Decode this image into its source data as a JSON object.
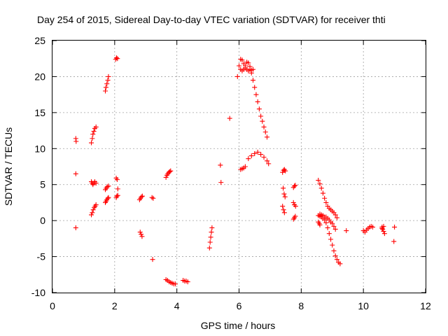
{
  "chart_data": {
    "type": "scatter",
    "title": "Day 254 of 2015, Sidereal Day-to-day VTEC variation (SDTVAR) for receiver thti",
    "xlabel": "GPS time / hours",
    "ylabel": "SDTVAR / TECUs",
    "xlim": [
      0,
      12
    ],
    "ylim": [
      -10,
      25
    ],
    "xticks": [
      "0",
      "2",
      "4",
      "6",
      "8",
      "10",
      "12"
    ],
    "yticks": [
      "-10",
      "-5",
      "0",
      "5",
      "10",
      "15",
      "20",
      "25"
    ],
    "grid": true,
    "marker": "+",
    "color": "#ff0000",
    "series": [
      {
        "name": "SDTVAR",
        "x": [
          0.75,
          0.76,
          0.75,
          0.75,
          1.25,
          1.28,
          1.3,
          1.33,
          1.36,
          1.4,
          1.25,
          1.28,
          1.3,
          1.33,
          1.36,
          1.4,
          1.25,
          1.28,
          1.31,
          1.34,
          1.37,
          1.4,
          1.7,
          1.72,
          1.75,
          1.78,
          1.8,
          1.7,
          1.73,
          1.76,
          1.8,
          1.7,
          1.72,
          1.75,
          1.78,
          1.8,
          2.03,
          2.06,
          2.09,
          2.05,
          2.08,
          2.1,
          2.05,
          2.07,
          2.1,
          2.8,
          2.83,
          2.86,
          2.89,
          2.82,
          2.85,
          2.88,
          3.2,
          3.24,
          3.22,
          3.65,
          3.68,
          3.71,
          3.74,
          3.77,
          3.8,
          3.65,
          3.7,
          3.75,
          3.8,
          3.85,
          3.9,
          3.95,
          4.2,
          4.25,
          4.3,
          4.35,
          5.05,
          5.07,
          5.09,
          5.11,
          5.13,
          5.4,
          5.42,
          5.7,
          5.95,
          6.0,
          6.05,
          6.1,
          6.15,
          6.2,
          6.25,
          6.3,
          6.35,
          6.4,
          6.45,
          6.5,
          6.55,
          6.6,
          6.65,
          6.7,
          6.75,
          6.8,
          6.85,
          6.9,
          6.05,
          6.1,
          6.15,
          6.2,
          6.25,
          6.3,
          6.35,
          6.4,
          6.45,
          6.05,
          6.1,
          6.15,
          6.2,
          6.3,
          6.4,
          6.5,
          6.6,
          6.7,
          6.8,
          6.9,
          6.95,
          7.4,
          7.43,
          7.46,
          7.49,
          7.42,
          7.45,
          7.48,
          7.4,
          7.43,
          7.46,
          7.75,
          7.78,
          7.81,
          7.75,
          7.78,
          7.82,
          7.75,
          7.78,
          7.81,
          8.55,
          8.6,
          8.65,
          8.7,
          8.75,
          8.8,
          8.85,
          8.9,
          8.95,
          9.0,
          9.05,
          9.1,
          9.15,
          8.55,
          8.6,
          8.65,
          8.7,
          8.75,
          8.8,
          8.85,
          8.9,
          8.95,
          9.0,
          9.05,
          9.1,
          9.15,
          9.2,
          9.25,
          8.6,
          8.65,
          8.7,
          8.75,
          8.8,
          8.85,
          8.9,
          8.95,
          9.0,
          9.05,
          9.1,
          8.55,
          8.58,
          8.6,
          9.45,
          10.0,
          10.05,
          10.1,
          10.15,
          10.2,
          10.25,
          10.3,
          10.6,
          10.62,
          10.65,
          10.68,
          10.6,
          10.65,
          11.0,
          10.98
        ],
        "y": [
          11.4,
          11.0,
          6.5,
          -1.0,
          10.8,
          11.4,
          12.0,
          12.4,
          12.8,
          13.0,
          5.4,
          5.2,
          5.0,
          5.2,
          5.4,
          5.2,
          0.8,
          1.1,
          1.5,
          1.8,
          2.0,
          2.2,
          18.0,
          18.5,
          19.0,
          19.5,
          20.0,
          4.3,
          4.5,
          4.7,
          4.8,
          2.5,
          2.7,
          2.9,
          3.1,
          3.2,
          22.4,
          22.6,
          22.5,
          5.9,
          5.7,
          4.4,
          3.2,
          3.4,
          3.5,
          2.9,
          3.1,
          3.3,
          3.4,
          -1.6,
          -1.9,
          -2.2,
          3.2,
          3.1,
          -5.4,
          6.0,
          6.3,
          6.5,
          6.7,
          6.8,
          6.9,
          -8.2,
          -8.3,
          -8.5,
          -8.6,
          -8.7,
          -8.8,
          -8.8,
          -8.3,
          -8.4,
          -8.4,
          -8.5,
          -3.8,
          -3.0,
          -2.3,
          -1.6,
          -1.0,
          7.7,
          5.3,
          14.2,
          20.0,
          21.5,
          22.4,
          22.3,
          21.8,
          21.5,
          22.0,
          21.9,
          21.4,
          20.5,
          19.5,
          18.5,
          17.5,
          16.5,
          15.5,
          14.5,
          13.8,
          13.0,
          12.3,
          11.6,
          21.0,
          20.8,
          21.0,
          21.2,
          21.0,
          20.8,
          21.0,
          20.9,
          21.0,
          7.1,
          7.2,
          7.3,
          7.5,
          8.6,
          9.0,
          9.3,
          9.5,
          9.2,
          8.8,
          8.3,
          7.9,
          6.7,
          7.0,
          7.1,
          6.9,
          4.5,
          3.7,
          3.3,
          2.0,
          1.5,
          1.1,
          4.6,
          4.8,
          4.9,
          2.5,
          2.2,
          2.0,
          0.2,
          0.4,
          0.6,
          5.6,
          5.1,
          4.5,
          3.8,
          3.1,
          2.5,
          2.0,
          1.7,
          1.5,
          1.3,
          1.1,
          0.8,
          0.4,
          0.7,
          0.6,
          0.5,
          0.3,
          0.1,
          -0.3,
          -1.0,
          -1.8,
          -2.6,
          -3.4,
          -4.2,
          -4.9,
          -5.4,
          -5.8,
          -6.0,
          0.9,
          0.8,
          0.7,
          0.5,
          0.5,
          0.3,
          0.1,
          -0.2,
          -0.4,
          -0.8,
          -1.2,
          -0.2,
          -0.4,
          -0.6,
          -1.4,
          -1.4,
          -1.6,
          -1.3,
          -1.1,
          -0.9,
          -0.8,
          -0.9,
          -0.9,
          -1.2,
          -1.5,
          -1.8,
          -1.1,
          -0.8,
          -0.9,
          -2.9
        ]
      }
    ]
  }
}
